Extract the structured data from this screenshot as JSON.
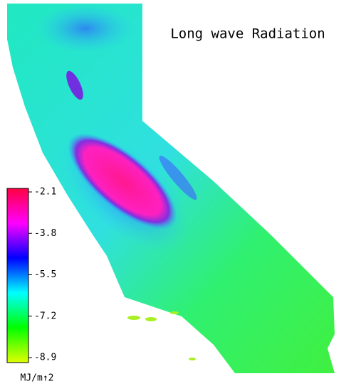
{
  "title": "Long wave Radiation",
  "colorbar": {
    "lim": [
      -8.9,
      -2.1
    ],
    "ticks": [
      -2.1,
      -3.8,
      -5.5,
      -7.2,
      -8.9
    ],
    "unit": "MJ/m↑2",
    "colors": [
      "#dfff00",
      "#00ff00",
      "#00ffff",
      "#0000ff",
      "#ff00ff",
      "#ff0040"
    ]
  }
}
